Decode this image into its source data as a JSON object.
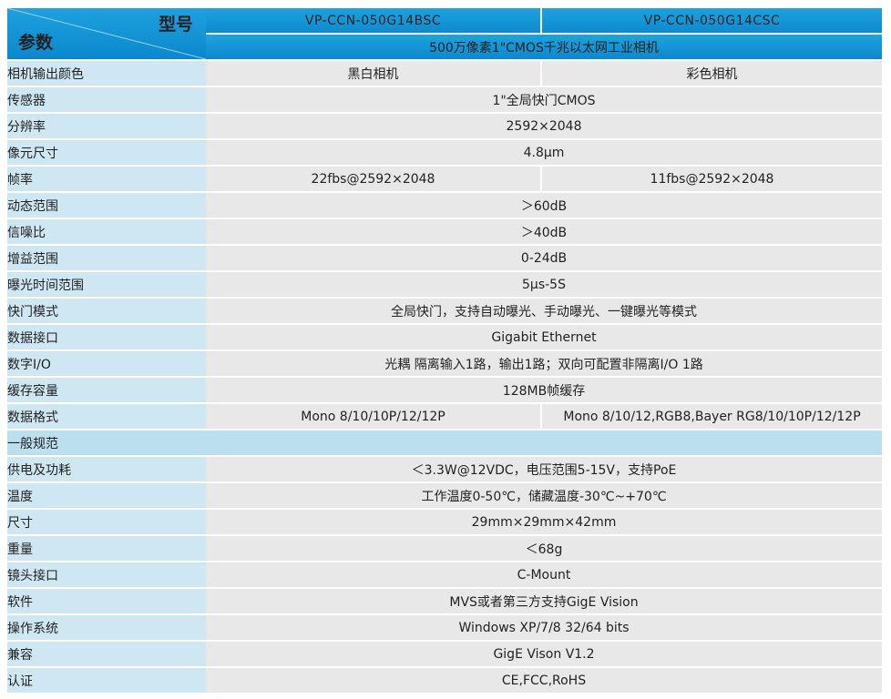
{
  "header": {
    "model_label": "型号",
    "params_label": "参数",
    "model_left": "VP-CCN-050G14BSC",
    "model_right": "VP-CCN-050G14CSC",
    "description": "500万像素1\"CMOS千兆以太网工业相机"
  },
  "rows": [
    {
      "label": "相机输出颜色",
      "left": "黑白相机",
      "right": "彩色相机"
    },
    {
      "label": "传感器",
      "value": "1\"全局快门CMOS"
    },
    {
      "label": "分辨率",
      "value": "2592×2048"
    },
    {
      "label": "像元尺寸",
      "value": "4.8μm"
    },
    {
      "label": "帧率",
      "left": "22fbs@2592×2048",
      "right": "11fbs@2592×2048"
    },
    {
      "label": "动态范围",
      "value": "＞60dB"
    },
    {
      "label": "信噪比",
      "value": "＞40dB"
    },
    {
      "label": "增益范围",
      "value": "0-24dB"
    },
    {
      "label": "曝光时间范围",
      "value": "5μs-5S"
    },
    {
      "label": "快门模式",
      "value": "全局快门，支持自动曝光、手动曝光、一键曝光等模式"
    },
    {
      "label": "数据接口",
      "value": "Gigabit Ethernet"
    },
    {
      "label": "数字I/O",
      "value": "光耦 隔离输入1路，输出1路；双向可配置非隔离I/O 1路"
    },
    {
      "label": "缓存容量",
      "value": "128MB帧缓存"
    },
    {
      "label": "数据格式",
      "left": "Mono 8/10/10P/12/12P",
      "right": "Mono 8/10/12,RGB8,Bayer RG8/10/10P/12/12P"
    }
  ],
  "section_general": "一般规范",
  "general_rows": [
    {
      "label": "供电及功耗",
      "value": "＜3.3W@12VDC，电压范围5-15V，支持PoE"
    },
    {
      "label": "温度",
      "value": "工作温度0-50℃，储藏温度-30℃~+70℃"
    },
    {
      "label": "尺寸",
      "value": "29mm×29mm×42mm"
    },
    {
      "label": "重量",
      "value": "＜68g"
    },
    {
      "label": "镜头接口",
      "value": "C-Mount"
    },
    {
      "label": "软件",
      "value": "MVS或者第三方支持GigE Vision"
    },
    {
      "label": "操作系统",
      "value": "Windows XP/7/8 32/64 bits"
    },
    {
      "label": "兼容",
      "value": "GigE Vison V1.2"
    },
    {
      "label": "认证",
      "value": "CE,FCC,RoHS"
    }
  ]
}
